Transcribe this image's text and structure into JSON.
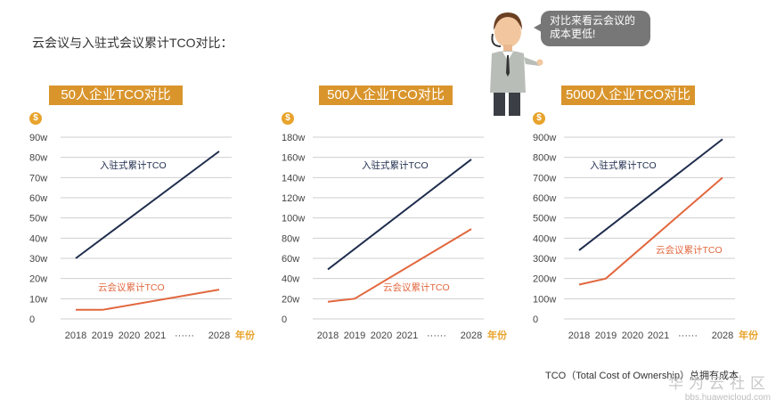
{
  "page": {
    "title": "云会议与入驻式会议累计TCO对比：",
    "speech": [
      "对比来看云会议的",
      "成本更低!"
    ],
    "footnote": "TCO（Total Cost of Ownership）总拥有成本",
    "watermark_main": "华为云社区",
    "watermark_sub": "bbs.huaweicloud.com"
  },
  "colors": {
    "accent": "#d9952c",
    "onprem": "#1f2d4d",
    "cloud": "#e2673e",
    "grid": "#cfcfcf",
    "yearUnit": "#e8a32c"
  },
  "chart_data": [
    {
      "type": "line",
      "title": "50人企业TCO对比",
      "categories": [
        "2018",
        "2019",
        "2020",
        "2021",
        "······",
        "2028"
      ],
      "x_unit": "年份",
      "y_ticks": [
        "0",
        "10w",
        "20w",
        "30w",
        "40w",
        "50w",
        "60w",
        "70w",
        "80w",
        "90w"
      ],
      "ylim": [
        0,
        90
      ],
      "series": [
        {
          "name": "入驻式累计TCO",
          "x": [
            2018,
            2028
          ],
          "values": [
            30,
            83
          ]
        },
        {
          "name": "云会议累计TCO",
          "x": [
            2018,
            2019,
            2028
          ],
          "values": [
            4.5,
            4.5,
            14.5
          ]
        }
      ]
    },
    {
      "type": "line",
      "title": "500人企业TCO对比",
      "categories": [
        "2018",
        "2019",
        "2020",
        "2021",
        "······",
        "2028"
      ],
      "x_unit": "年份",
      "y_ticks": [
        "0",
        "20w",
        "40w",
        "60w",
        "80w",
        "100w",
        "120w",
        "140w",
        "160w",
        "180w"
      ],
      "ylim": [
        0,
        180
      ],
      "series": [
        {
          "name": "入驻式累计TCO",
          "x": [
            2018,
            2028
          ],
          "values": [
            49,
            158
          ]
        },
        {
          "name": "云会议累计TCO",
          "x": [
            2018,
            2019,
            2028
          ],
          "values": [
            17,
            20,
            89
          ]
        }
      ]
    },
    {
      "type": "line",
      "title": "5000人企业TCO对比",
      "categories": [
        "2018",
        "2019",
        "2020",
        "2021",
        "······",
        "2028"
      ],
      "x_unit": "年份",
      "y_ticks": [
        "0",
        "100w",
        "200w",
        "300w",
        "400w",
        "500w",
        "600w",
        "700w",
        "800w",
        "900w"
      ],
      "ylim": [
        0,
        900
      ],
      "series": [
        {
          "name": "入驻式累计TCO",
          "x": [
            2018,
            2028
          ],
          "values": [
            340,
            890
          ]
        },
        {
          "name": "云会议累计TCO",
          "x": [
            2018,
            2019,
            2028
          ],
          "values": [
            170,
            200,
            700
          ]
        }
      ]
    }
  ]
}
